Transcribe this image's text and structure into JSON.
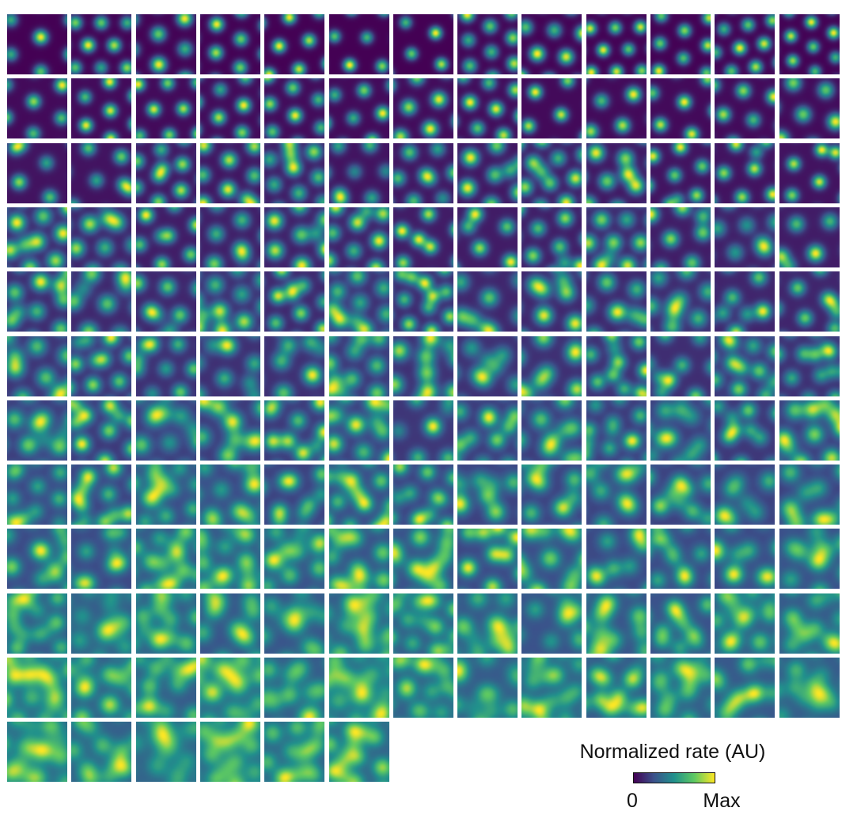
{
  "figure": {
    "panel_rows": [
      13,
      13,
      13,
      13,
      13,
      13,
      13,
      13,
      13,
      13,
      13,
      6
    ],
    "colormap": [
      "#440154",
      "#3b528b",
      "#21918c",
      "#5ec962",
      "#fde725"
    ]
  },
  "legend": {
    "title": "Normalized rate (AU)",
    "min_label": "0",
    "max_label": "Max"
  }
}
